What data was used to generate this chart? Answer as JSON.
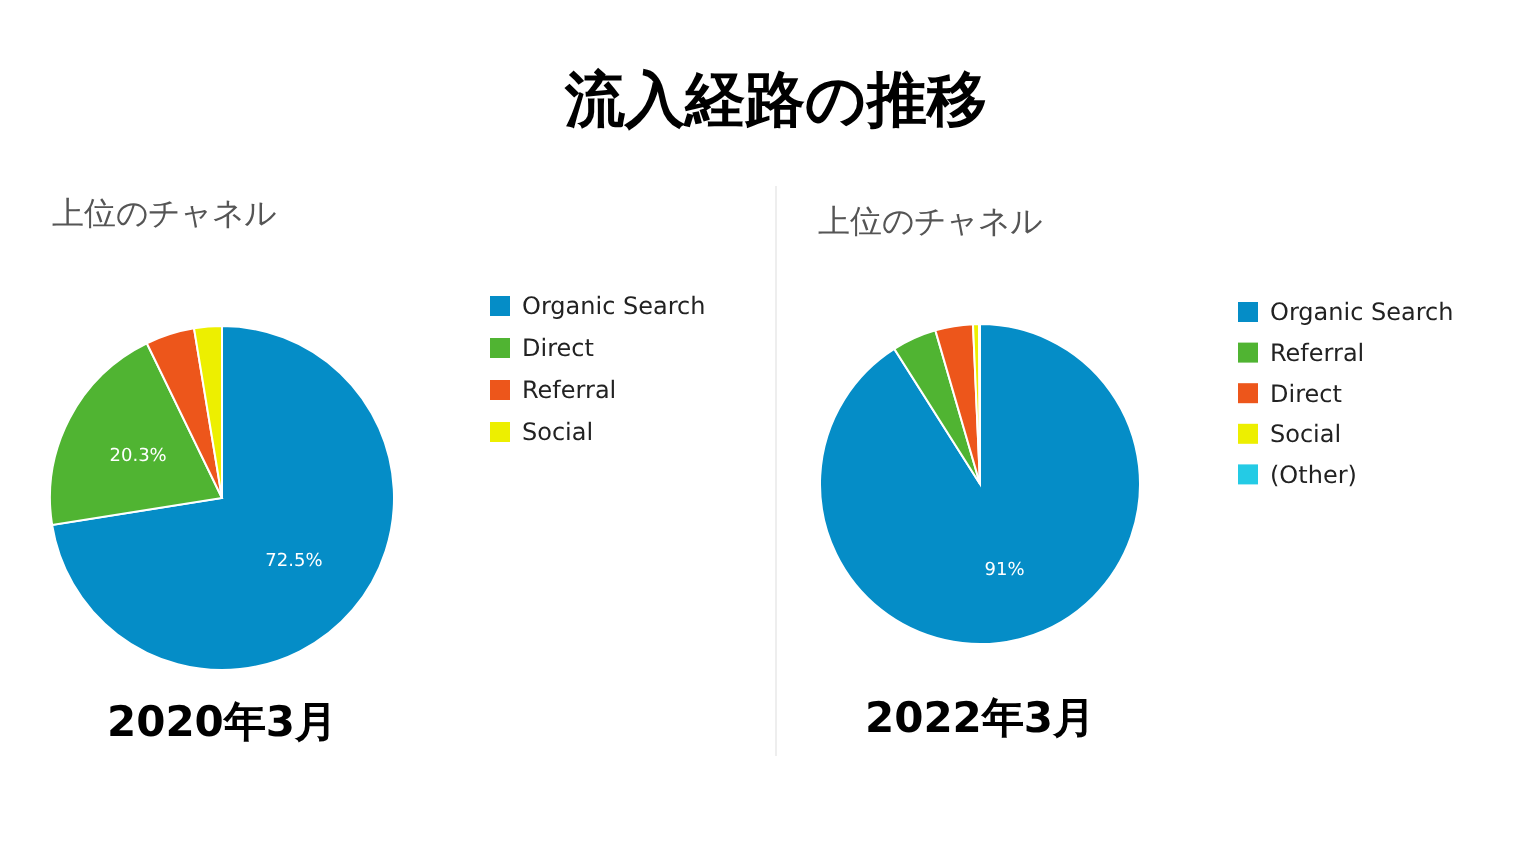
{
  "chart_data": [
    {
      "type": "pie",
      "title": "上位のチャネル",
      "categories": [
        "Organic Search",
        "Direct",
        "Referral",
        "Social"
      ],
      "values": [
        72.5,
        20.3,
        4.6,
        2.6
      ],
      "colors": [
        "#058dc7",
        "#50b432",
        "#ed561b",
        "#edef00"
      ],
      "value_labels": [
        "72.5%",
        "20.3%",
        null,
        null
      ],
      "legend": "right",
      "annotations": [
        "流入経路の推移",
        "2020年3月"
      ]
    },
    {
      "type": "pie",
      "title": "上位のチャネル",
      "categories": [
        "Organic Search",
        "Referral",
        "Direct",
        "Social",
        "(Other)"
      ],
      "values": [
        91,
        4.5,
        3.8,
        0.6,
        0.1
      ],
      "colors": [
        "#058dc7",
        "#50b432",
        "#ed561b",
        "#edef00",
        "#24cbe5"
      ],
      "value_labels": [
        "91%",
        null,
        null,
        null,
        null
      ],
      "legend": "right",
      "annotations": [
        "2022年3月"
      ]
    }
  ]
}
